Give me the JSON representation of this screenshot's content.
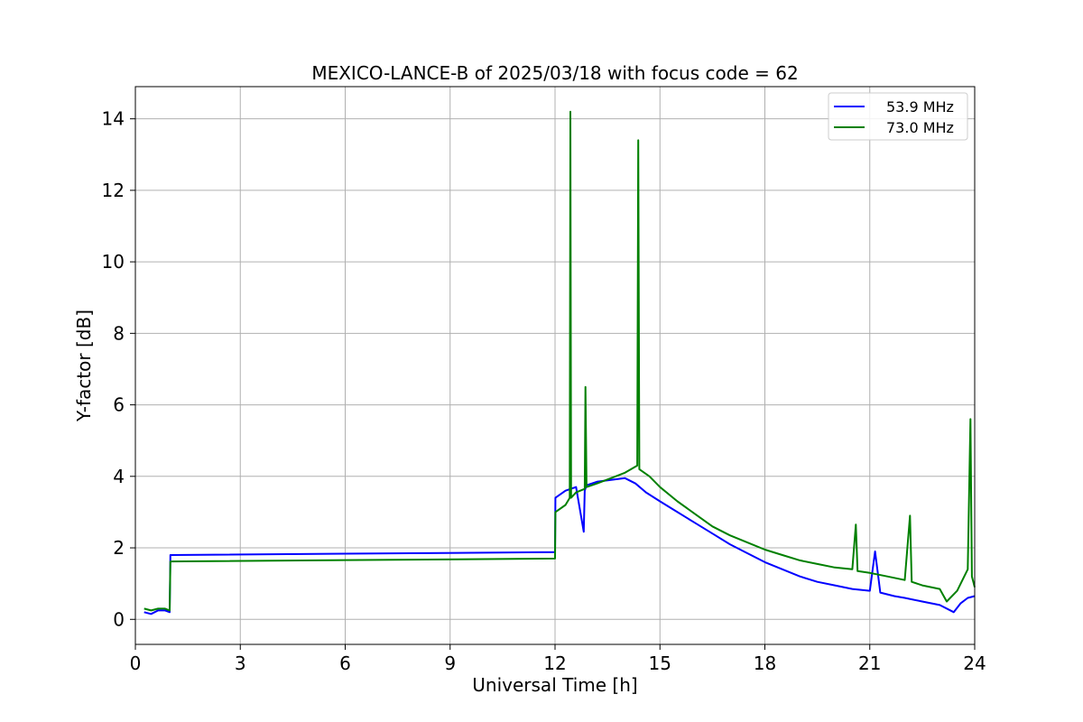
{
  "chart_data": {
    "type": "line",
    "title": "MEXICO-LANCE-B of 2025/03/18 with focus code = 62",
    "xlabel": "Universal Time [h]",
    "ylabel": "Y-factor [dB]",
    "xlim": [
      0,
      24
    ],
    "ylim": [
      -0.7,
      14.9
    ],
    "xticks": [
      0,
      3,
      6,
      9,
      12,
      15,
      18,
      21,
      24
    ],
    "yticks": [
      0,
      2,
      4,
      6,
      8,
      10,
      12,
      14
    ],
    "grid": true,
    "legend_position": "top-right",
    "series": [
      {
        "name": "53.9 MHz",
        "color": "#0000ff",
        "x": [
          0.25,
          0.45,
          0.65,
          0.85,
          0.98,
          1.0,
          12.0,
          12.01,
          12.3,
          12.6,
          12.82,
          12.85,
          12.9,
          13.2,
          13.6,
          14.0,
          14.3,
          14.6,
          15.0,
          15.5,
          16.0,
          16.5,
          17.0,
          17.5,
          18.0,
          18.5,
          19.0,
          19.5,
          20.0,
          20.5,
          21.0,
          21.15,
          21.3,
          21.7,
          22.0,
          22.5,
          23.0,
          23.4,
          23.6,
          23.8,
          24.0
        ],
        "y": [
          0.2,
          0.15,
          0.25,
          0.25,
          0.2,
          1.8,
          1.88,
          3.4,
          3.6,
          3.7,
          2.45,
          3.6,
          3.75,
          3.85,
          3.9,
          3.95,
          3.8,
          3.55,
          3.3,
          3.0,
          2.7,
          2.4,
          2.1,
          1.85,
          1.6,
          1.4,
          1.2,
          1.05,
          0.95,
          0.85,
          0.8,
          1.9,
          0.75,
          0.65,
          0.6,
          0.5,
          0.4,
          0.2,
          0.45,
          0.6,
          0.65
        ]
      },
      {
        "name": "73.0 MHz",
        "color": "#008000",
        "x": [
          0.25,
          0.45,
          0.65,
          0.85,
          0.98,
          1.0,
          12.0,
          12.01,
          12.3,
          12.42,
          12.44,
          12.46,
          12.6,
          12.85,
          12.87,
          12.9,
          13.2,
          13.6,
          14.0,
          14.35,
          14.38,
          14.41,
          14.7,
          15.0,
          15.5,
          16.0,
          16.5,
          17.0,
          17.5,
          18.0,
          18.5,
          19.0,
          19.5,
          20.0,
          20.5,
          20.6,
          20.65,
          21.0,
          21.5,
          22.0,
          22.15,
          22.2,
          22.5,
          23.0,
          23.2,
          23.5,
          23.8,
          23.88,
          23.92,
          24.0
        ],
        "y": [
          0.3,
          0.25,
          0.3,
          0.3,
          0.25,
          1.62,
          1.7,
          3.0,
          3.2,
          3.4,
          14.2,
          3.4,
          3.55,
          3.65,
          6.5,
          3.7,
          3.8,
          3.95,
          4.1,
          4.3,
          13.4,
          4.2,
          4.0,
          3.7,
          3.3,
          2.95,
          2.6,
          2.35,
          2.15,
          1.95,
          1.8,
          1.65,
          1.55,
          1.45,
          1.4,
          2.65,
          1.35,
          1.3,
          1.2,
          1.1,
          2.9,
          1.05,
          0.95,
          0.85,
          0.5,
          0.8,
          1.4,
          5.6,
          1.2,
          0.9
        ]
      }
    ]
  }
}
